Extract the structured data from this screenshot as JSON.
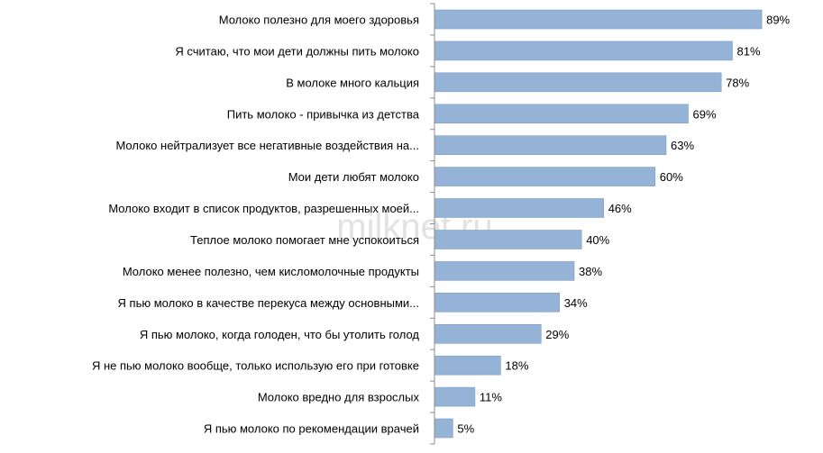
{
  "watermark": "milknet.ru",
  "chart_data": {
    "type": "bar",
    "orientation": "horizontal",
    "categories": [
      "Молоко полезно для моего здоровья",
      "Я считаю, что мои дети должны пить молоко",
      "В молоке много кальция",
      "Пить молоко - привычка из детства",
      "Молоко нейтрализует все негативные воздействия на...",
      "Мои дети любят молоко",
      "Молоко входит в список продуктов, разрешенных моей...",
      "Теплое молоко помогает мне успокоиться",
      "Молоко менее полезно, чем кисломолочные продукты",
      "Я пью молоко в качестве перекуса между основными...",
      "Я пью молоко, когда голоден, что бы утолить голод",
      "Я не пью молоко вообще, только использую его при готовке",
      "Молоко вредно для взрослых",
      "Я пью молоко по  рекомендации врачей"
    ],
    "values": [
      89,
      81,
      78,
      69,
      63,
      60,
      46,
      40,
      38,
      34,
      29,
      18,
      11,
      5
    ],
    "value_labels": [
      "89%",
      "81%",
      "78%",
      "69%",
      "63%",
      "60%",
      "46%",
      "40%",
      "38%",
      "34%",
      "29%",
      "18%",
      "11%",
      "5%"
    ],
    "xlim": [
      0,
      100
    ],
    "unit": "%",
    "title": "",
    "xlabel": "",
    "ylabel": "",
    "grid": false,
    "legend": "none",
    "bar_color": "#95b3d7"
  }
}
